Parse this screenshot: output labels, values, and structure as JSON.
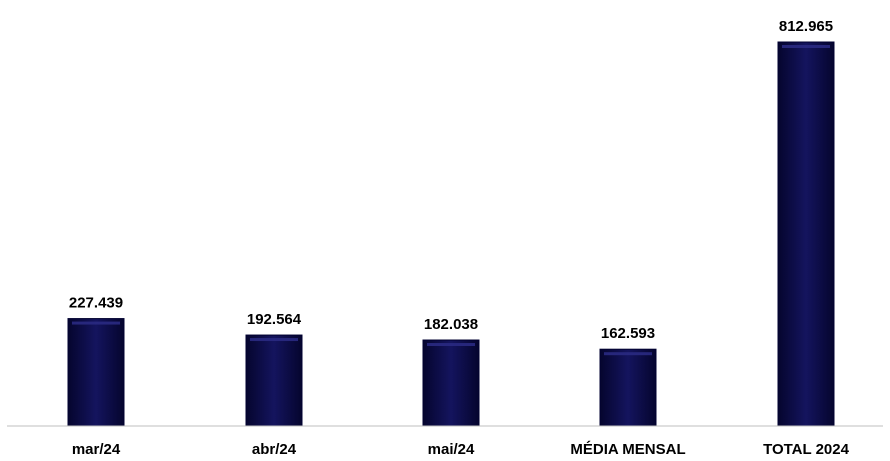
{
  "chart_data": {
    "type": "bar",
    "categories": [
      "mar/24",
      "abr/24",
      "mai/24",
      "MÉDIA MENSAL",
      "TOTAL 2024"
    ],
    "values": [
      227439,
      192564,
      182038,
      162593,
      812965
    ],
    "value_labels": [
      "227.439",
      "192.564",
      "182.038",
      "162.593",
      "812.965"
    ],
    "title": "",
    "xlabel": "",
    "ylabel": "",
    "ylim": [
      0,
      812965
    ],
    "grid": false,
    "legend": "none",
    "colors": {
      "bar": "#0b0b4d",
      "bar_highlight": "#2a2a82",
      "bar_edge": "#000030",
      "axis": "#bfbfbf"
    }
  }
}
